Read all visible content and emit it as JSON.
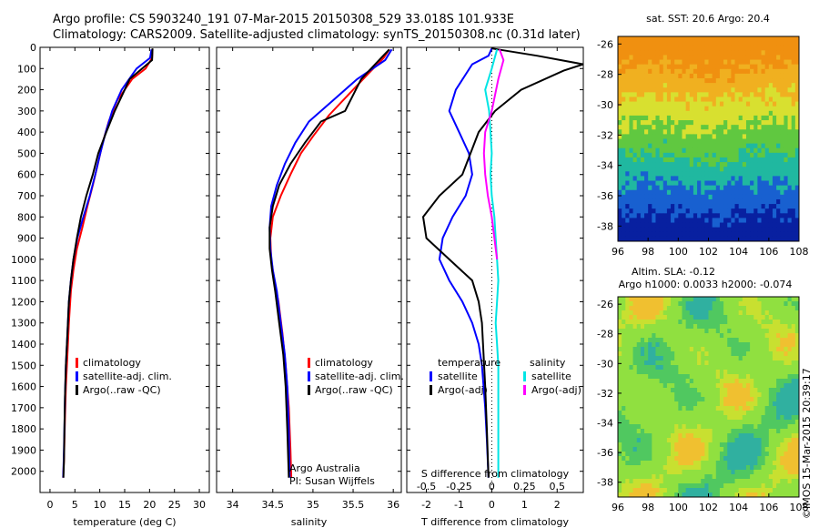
{
  "header": {
    "line1": "Argo profile: CS 5903240_191 07-Mar-2015 20150308_529 33.018S 101.933E",
    "line2": "Climatology: CARS2009. Satellite-adjusted climatology: synTS_20150308.nc (0.31d later)"
  },
  "footer_stamp": "©IMOS 15-Mar-2015 20:39:17",
  "colors": {
    "climatology": "#ff0000",
    "satellite": "#0000ff",
    "argo": "#000000",
    "sat_salinity": "#00e5e5",
    "argo_salinity": "#ff00ff",
    "sst_warm": "#f09010",
    "sla_background": "#90e040"
  },
  "chart_data": [
    {
      "type": "line",
      "name": "temperature-panel",
      "xlabel": "temperature (deg C)",
      "xlim": [
        -2,
        32
      ],
      "xticks": [
        0,
        5,
        10,
        15,
        20,
        25,
        30
      ],
      "ylim": [
        2100,
        0
      ],
      "yticks": [
        0,
        100,
        200,
        300,
        400,
        500,
        600,
        700,
        800,
        900,
        1000,
        1100,
        1200,
        1300,
        1400,
        1500,
        1600,
        1700,
        1800,
        1900,
        2000
      ],
      "legend": [
        "climatology",
        "satellite-adj. clim.",
        "Argo(..raw -QC)"
      ],
      "legend_placement": "middle-right",
      "series": [
        {
          "name": "climatology",
          "color": "#ff0000",
          "x": [
            20.6,
            20.5,
            19.2,
            16.5,
            13.5,
            11.8,
            10.6,
            9.6,
            8.6,
            7.5,
            6.5,
            5.4,
            4.7,
            4.2,
            3.8,
            3.5,
            3.2,
            3.0,
            2.9,
            2.8,
            2.7,
            2.65
          ],
          "y": [
            10,
            50,
            100,
            150,
            250,
            350,
            450,
            550,
            650,
            750,
            850,
            950,
            1050,
            1150,
            1300,
            1450,
            1600,
            1750,
            1850,
            1950,
            2000,
            2030
          ]
        },
        {
          "name": "satellite-adj. clim.",
          "color": "#0000ff",
          "x": [
            20.4,
            20.1,
            17.4,
            14.4,
            12.5,
            11.2,
            10.1,
            9.1,
            8.0,
            6.7,
            5.5,
            4.7,
            4.2,
            3.8,
            3.5,
            3.2,
            3.0,
            2.9,
            2.75,
            2.65
          ],
          "y": [
            10,
            50,
            100,
            200,
            300,
            400,
            500,
            600,
            700,
            800,
            900,
            1000,
            1100,
            1200,
            1350,
            1500,
            1650,
            1800,
            1950,
            2030
          ]
        },
        {
          "name": "Argo(..raw -QC)",
          "color": "#000000",
          "x": [
            20.6,
            20.5,
            19.0,
            16.0,
            13.0,
            11.3,
            9.7,
            8.6,
            7.3,
            6.2,
            5.4,
            4.7,
            4.2,
            3.8,
            3.5,
            3.2,
            3.0,
            2.9,
            2.8,
            2.7
          ],
          "y": [
            5,
            60,
            90,
            150,
            300,
            400,
            500,
            600,
            700,
            800,
            900,
            1000,
            1100,
            1200,
            1350,
            1500,
            1650,
            1800,
            1950,
            2030
          ]
        }
      ]
    },
    {
      "type": "line",
      "name": "salinity-panel",
      "xlabel": "salinity",
      "xlim": [
        33.8,
        36.1
      ],
      "xticks": [
        34,
        34.5,
        35,
        35.5,
        36
      ],
      "ylim": [
        2100,
        0
      ],
      "legend": [
        "climatology",
        "satellite-adj. clim.",
        "Argo(..raw -QC)"
      ],
      "legend_placement": "middle-right",
      "annotation": [
        "Argo Australia",
        "PI: Susan Wijffels"
      ],
      "series": [
        {
          "name": "climatology",
          "color": "#ff0000",
          "x": [
            35.95,
            35.88,
            35.7,
            35.5,
            35.2,
            35.0,
            34.85,
            34.72,
            34.6,
            34.5,
            34.47,
            34.48,
            34.52,
            34.57,
            34.62,
            34.66,
            34.7,
            34.72,
            34.73
          ],
          "y": [
            10,
            50,
            120,
            200,
            320,
            420,
            500,
            600,
            700,
            800,
            900,
            1000,
            1100,
            1200,
            1350,
            1500,
            1700,
            1900,
            2030
          ]
        },
        {
          "name": "satellite-adj. clim.",
          "color": "#0000ff",
          "x": [
            35.98,
            35.9,
            35.55,
            35.25,
            34.95,
            34.78,
            34.65,
            34.55,
            34.48,
            34.46,
            34.47,
            34.5,
            34.55,
            34.6,
            34.65,
            34.68,
            34.7,
            34.71
          ],
          "y": [
            10,
            60,
            150,
            250,
            350,
            450,
            550,
            650,
            750,
            850,
            950,
            1050,
            1150,
            1300,
            1450,
            1600,
            1800,
            2030
          ]
        },
        {
          "name": "Argo(..raw -QC)",
          "color": "#000000",
          "x": [
            35.95,
            35.85,
            35.6,
            35.4,
            35.1,
            34.9,
            34.72,
            34.58,
            34.5,
            34.46,
            34.46,
            34.49,
            34.53,
            34.58,
            34.63,
            34.66,
            34.68,
            34.7
          ],
          "y": [
            10,
            50,
            150,
            300,
            350,
            450,
            550,
            650,
            750,
            850,
            950,
            1050,
            1150,
            1300,
            1450,
            1600,
            1800,
            2030
          ]
        }
      ]
    },
    {
      "type": "line",
      "name": "difference-panel",
      "xlabel": "T difference from climatology",
      "xlabel_top": "S difference from climatology",
      "xlim": [
        -2.6,
        2.8
      ],
      "xticks": [
        -2,
        -1,
        0,
        1,
        2
      ],
      "sticks": [
        -0.5,
        -0.25,
        0,
        0.25,
        0.5
      ],
      "s_tick_scale": 4,
      "ylim": [
        2100,
        0
      ],
      "legend_groups": [
        {
          "title": "temperature",
          "entries": [
            "satellite",
            "Argo(-adj)"
          ]
        },
        {
          "title": "salinity",
          "entries": [
            "satellite",
            "Argo(-adj)"
          ]
        }
      ],
      "series": [
        {
          "name": "temperature satellite",
          "color": "#0000ff",
          "x": [
            0,
            -0.1,
            -0.6,
            -1.1,
            -1.3,
            -1.0,
            -0.7,
            -0.6,
            -0.8,
            -1.2,
            -1.5,
            -1.6,
            -1.3,
            -0.9,
            -0.6,
            -0.4,
            -0.3,
            -0.25,
            -0.2,
            -0.15,
            -0.1
          ],
          "y": [
            5,
            40,
            80,
            200,
            300,
            400,
            500,
            600,
            700,
            800,
            900,
            1000,
            1100,
            1200,
            1300,
            1400,
            1500,
            1600,
            1700,
            1850,
            2030
          ]
        },
        {
          "name": "temperature Argo(-adj)",
          "color": "#000000",
          "x": [
            0,
            1.4,
            2.8,
            2.2,
            0.9,
            0.1,
            -0.4,
            -0.9,
            -1.6,
            -2.1,
            -2.0,
            -1.3,
            -0.6,
            -0.4,
            -0.3,
            -0.25,
            -0.2,
            -0.15,
            -0.1
          ],
          "y": [
            5,
            40,
            80,
            110,
            200,
            300,
            400,
            600,
            700,
            800,
            900,
            1000,
            1100,
            1200,
            1300,
            1450,
            1600,
            1800,
            2030
          ]
        },
        {
          "name": "salinity satellite",
          "color": "#00e5e5",
          "x": [
            0.04,
            0.0,
            -0.05,
            -0.02,
            -0.01,
            0.0,
            -0.01,
            0.0,
            0.02,
            0.03,
            0.04,
            0.05,
            0.04,
            0.03,
            0.04,
            0.05,
            0.05,
            0.05
          ],
          "y": [
            10,
            100,
            200,
            300,
            400,
            500,
            600,
            700,
            800,
            900,
            1000,
            1100,
            1200,
            1300,
            1400,
            1500,
            1700,
            2030
          ]
        },
        {
          "name": "salinity Argo(-adj)",
          "color": "#ff00ff",
          "x": [
            0.06,
            0.09,
            0.05,
            0.0,
            -0.05,
            -0.06,
            -0.05,
            -0.03,
            0.0,
            0.02,
            0.04
          ],
          "y": [
            10,
            60,
            150,
            300,
            400,
            500,
            600,
            700,
            800,
            900,
            1000
          ]
        }
      ]
    },
    {
      "type": "heatmap",
      "name": "sst-map",
      "title": "sat. SST: 20.6  Argo: 20.4",
      "xlim": [
        96,
        108
      ],
      "xticks": [
        96,
        98,
        100,
        102,
        104,
        106,
        108
      ],
      "ylim": [
        -39,
        -25.5
      ],
      "yticks": [
        -26,
        -28,
        -30,
        -32,
        -34,
        -36,
        -38
      ],
      "colors_by_latitude": [
        "#f09010",
        "#f0b020",
        "#d8e030",
        "#60c840",
        "#20b8a0",
        "#1860d0",
        "#0820a0"
      ]
    },
    {
      "type": "heatmap",
      "name": "sla-map",
      "title": "Altim. SLA: -0.12",
      "subtitle": "Argo h1000: 0.0033  h2000: -0.074",
      "xlim": [
        96,
        108
      ],
      "xticks": [
        96,
        98,
        100,
        102,
        104,
        106,
        108
      ],
      "ylim": [
        -39,
        -25.5
      ],
      "yticks": [
        -26,
        -28,
        -30,
        -32,
        -34,
        -36,
        -38
      ]
    }
  ]
}
